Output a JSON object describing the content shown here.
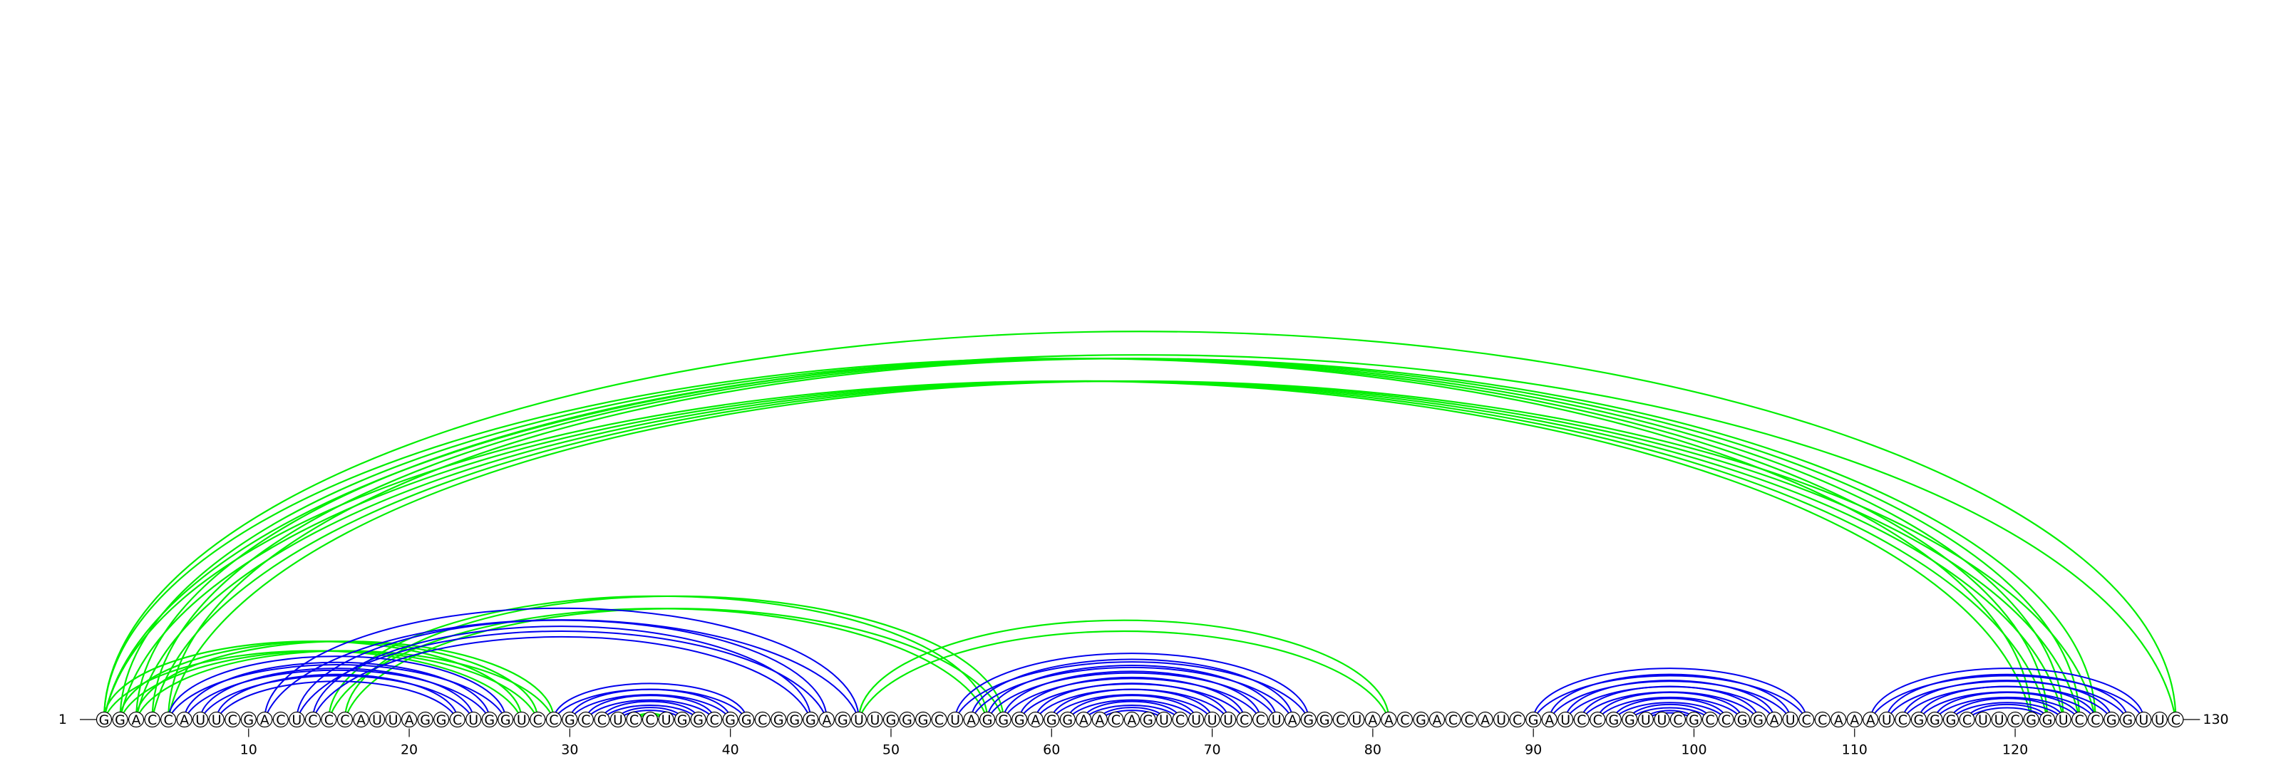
{
  "sequence": "GGACCAUUCGACUCCCAUUAGGCUGGUCCGCCUCCUGGCGGCGGGAGUUGGGCUAGGGAGGAACAGUCUUUCCUAGGCUAACGACCAUCGAUCCGGUUCGCCGGAUCCAAAUCGGGCUUCGGUCCGGUUC",
  "start_label": "1",
  "end_label": "130",
  "ticks": [
    10,
    20,
    30,
    40,
    50,
    60,
    70,
    80,
    90,
    100,
    110,
    120
  ],
  "colors": {
    "primary": "#0000ee",
    "secondary": "#00ee00",
    "text": "#000000"
  },
  "arcs": [
    {
      "group": "secondary",
      "from": 1,
      "to": 121
    },
    {
      "group": "secondary",
      "from": 2,
      "to": 122
    },
    {
      "group": "secondary",
      "from": 3,
      "to": 123
    },
    {
      "group": "secondary",
      "from": 4,
      "to": 124
    },
    {
      "group": "secondary",
      "from": 5,
      "to": 125
    },
    {
      "group": "secondary",
      "from": 1,
      "to": 130
    },
    {
      "group": "secondary",
      "from": 1,
      "to": 27
    },
    {
      "group": "secondary",
      "from": 2,
      "to": 28
    },
    {
      "group": "secondary",
      "from": 3,
      "to": 29
    },
    {
      "group": "secondary",
      "from": 15,
      "to": 56
    },
    {
      "group": "secondary",
      "from": 16,
      "to": 57
    },
    {
      "group": "secondary",
      "from": 48,
      "to": 81
    },
    {
      "group": "secondary",
      "from": 34,
      "to": 36
    },
    {
      "group": "primary",
      "from": 5,
      "to": 26
    },
    {
      "group": "primary",
      "from": 6,
      "to": 25
    },
    {
      "group": "primary",
      "from": 7,
      "to": 24
    },
    {
      "group": "primary",
      "from": 8,
      "to": 23
    },
    {
      "group": "primary",
      "from": 11,
      "to": 48
    },
    {
      "group": "primary",
      "from": 13,
      "to": 46
    },
    {
      "group": "primary",
      "from": 14,
      "to": 45
    },
    {
      "group": "primary",
      "from": 29,
      "to": 41
    },
    {
      "group": "primary",
      "from": 30,
      "to": 40
    },
    {
      "group": "primary",
      "from": 31,
      "to": 39
    },
    {
      "group": "primary",
      "from": 32,
      "to": 38
    },
    {
      "group": "primary",
      "from": 33,
      "to": 37
    },
    {
      "group": "primary",
      "from": 54,
      "to": 76
    },
    {
      "group": "primary",
      "from": 55,
      "to": 75
    },
    {
      "group": "primary",
      "from": 56,
      "to": 74
    },
    {
      "group": "primary",
      "from": 57,
      "to": 73
    },
    {
      "group": "primary",
      "from": 58,
      "to": 72
    },
    {
      "group": "primary",
      "from": 59,
      "to": 71
    },
    {
      "group": "primary",
      "from": 60,
      "to": 70
    },
    {
      "group": "primary",
      "from": 61,
      "to": 69
    },
    {
      "group": "primary",
      "from": 62,
      "to": 68
    },
    {
      "group": "primary",
      "from": 63,
      "to": 67
    },
    {
      "group": "primary",
      "from": 90,
      "to": 107
    },
    {
      "group": "primary",
      "from": 91,
      "to": 106
    },
    {
      "group": "primary",
      "from": 92,
      "to": 105
    },
    {
      "group": "primary",
      "from": 93,
      "to": 104
    },
    {
      "group": "primary",
      "from": 94,
      "to": 103
    },
    {
      "group": "primary",
      "from": 95,
      "to": 102
    },
    {
      "group": "primary",
      "from": 96,
      "to": 101
    },
    {
      "group": "primary",
      "from": 97,
      "to": 100
    },
    {
      "group": "primary",
      "from": 111,
      "to": 128
    },
    {
      "group": "primary",
      "from": 112,
      "to": 127
    },
    {
      "group": "primary",
      "from": 113,
      "to": 126
    },
    {
      "group": "primary",
      "from": 114,
      "to": 125
    },
    {
      "group": "primary",
      "from": 115,
      "to": 124
    },
    {
      "group": "primary",
      "from": 116,
      "to": 123
    },
    {
      "group": "primary",
      "from": 117,
      "to": 122
    }
  ]
}
